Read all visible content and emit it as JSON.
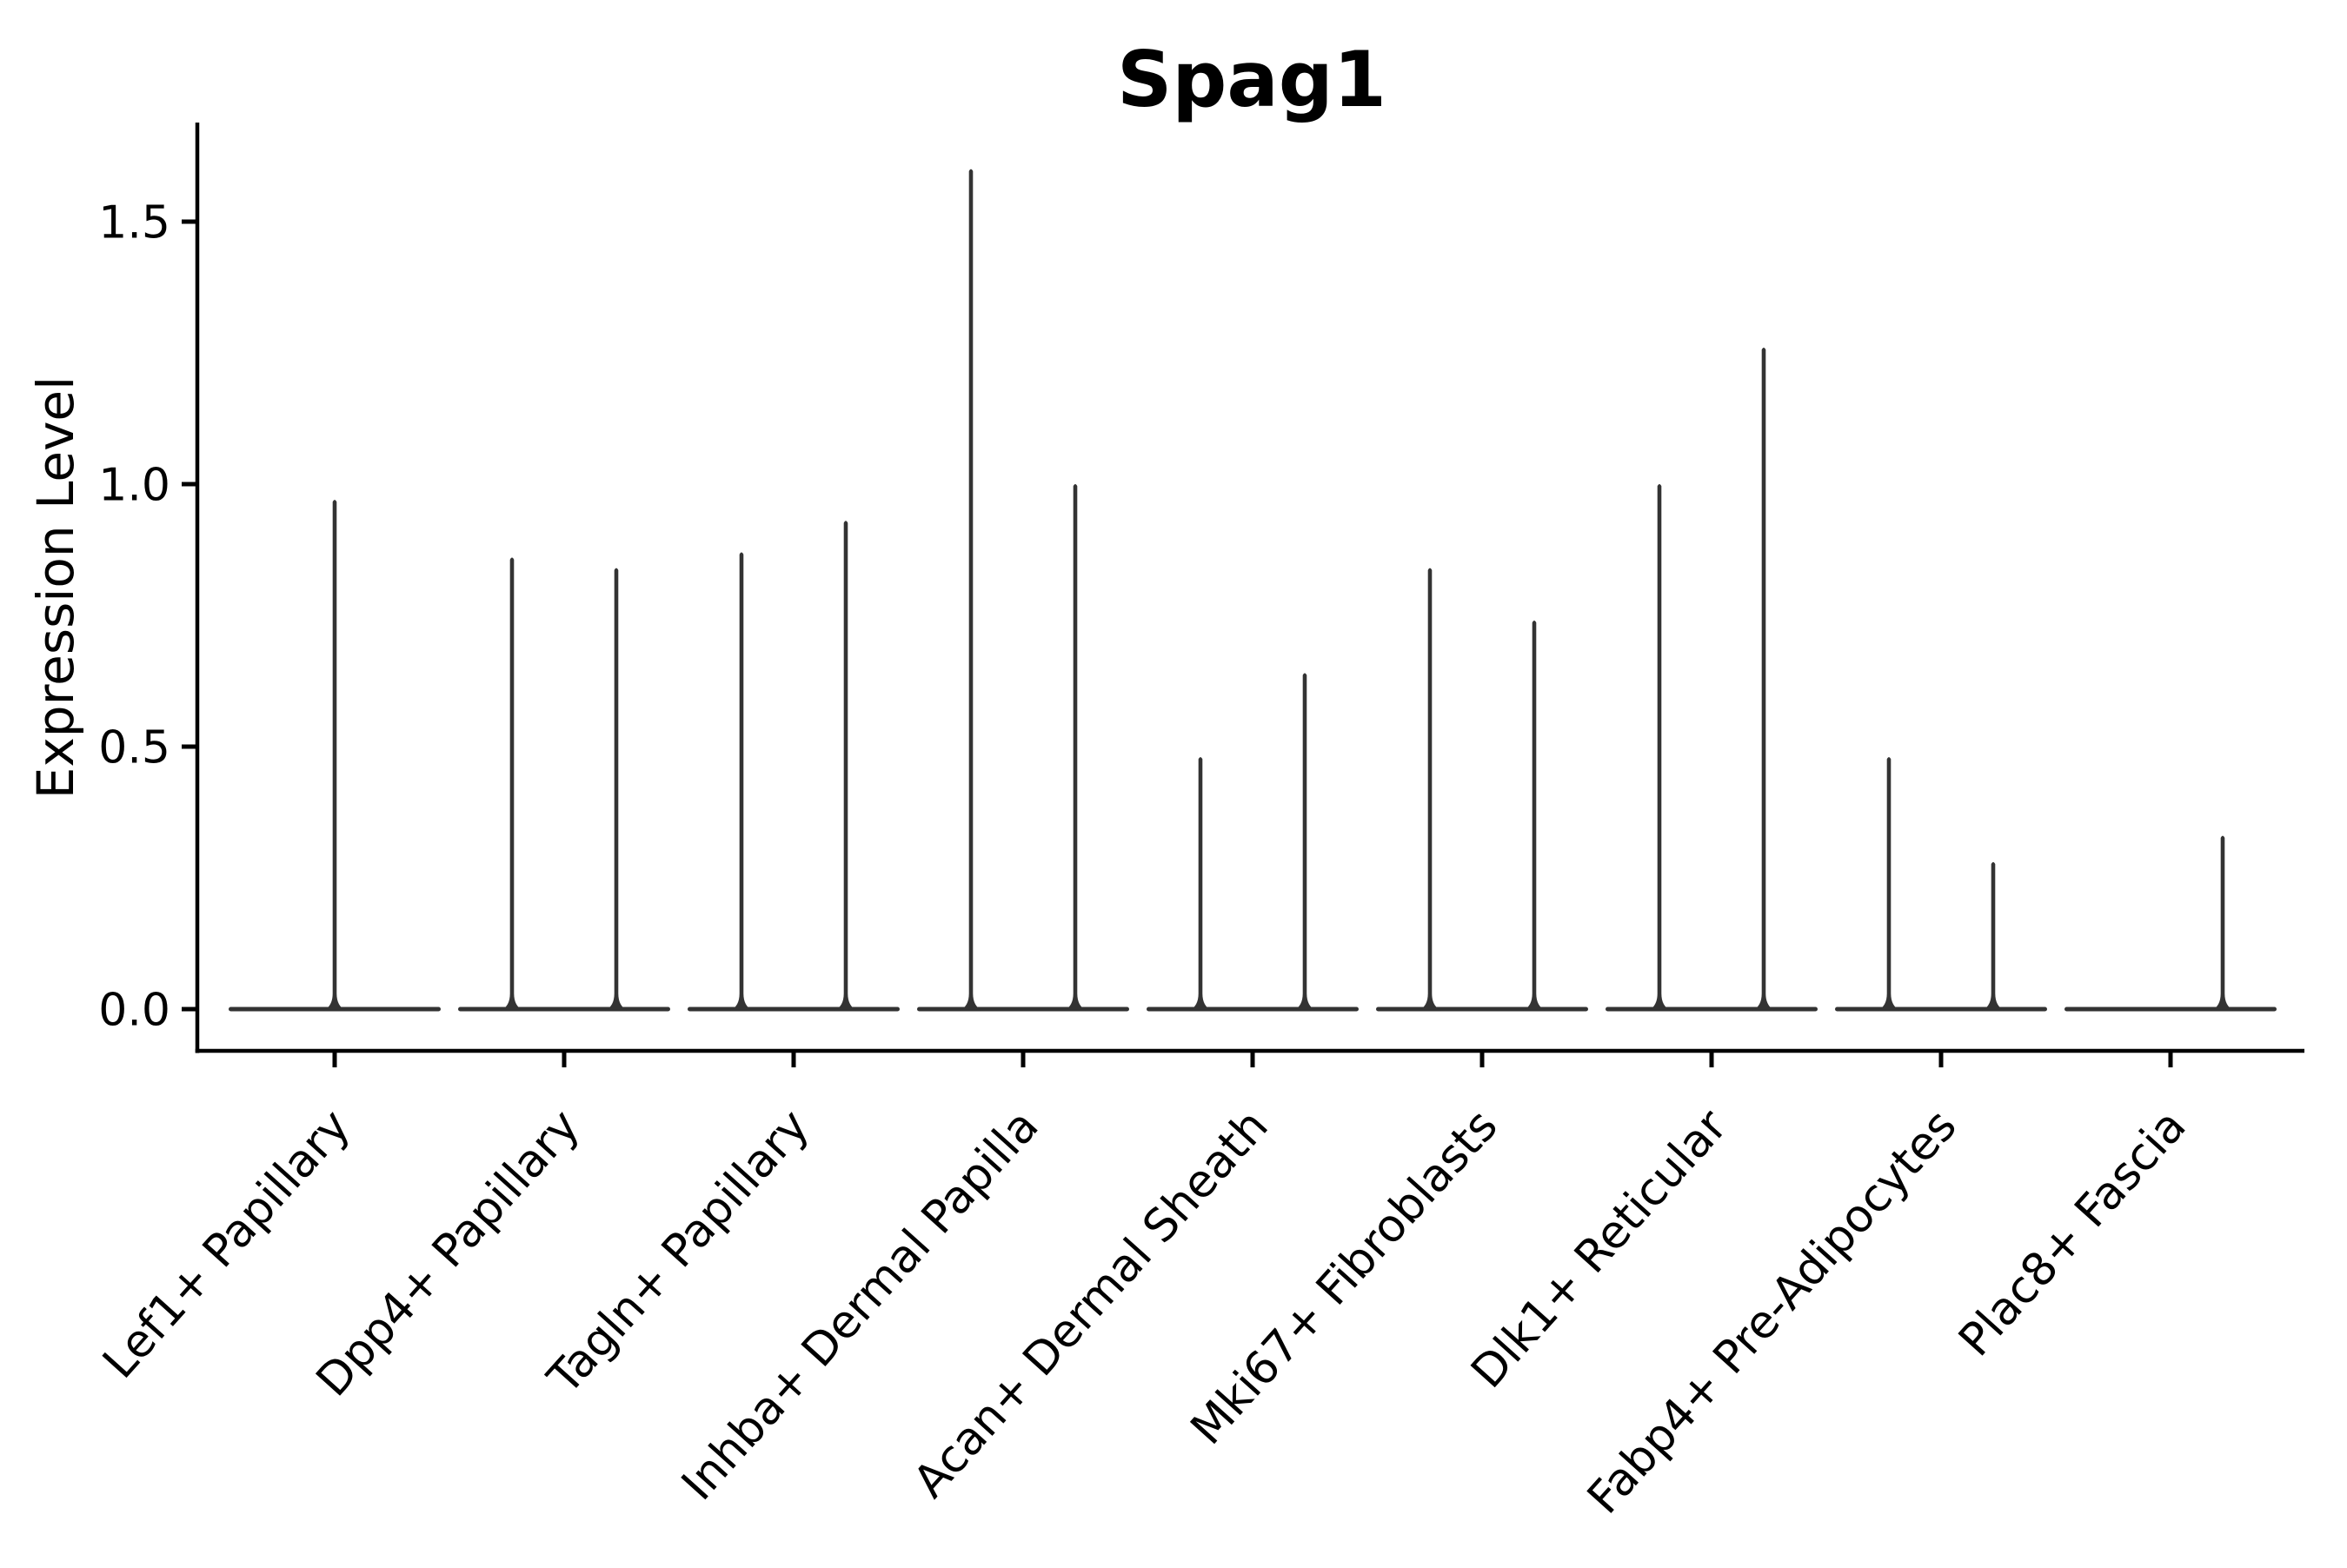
{
  "chart_data": {
    "type": "violin",
    "title": "Spag1",
    "xlabel": "",
    "ylabel": "Expression Level",
    "y_ticks": [
      0.0,
      0.5,
      1.0,
      1.5
    ],
    "ylim": [
      -0.08,
      1.69
    ],
    "grid": false,
    "legend": "none",
    "categories": [
      {
        "label": "Lef1+ Papillary",
        "violins": [
          {
            "position": "center",
            "max": 0.97
          }
        ]
      },
      {
        "label": "Dpp4+ Papillary",
        "violins": [
          {
            "position": "left",
            "max": 0.86
          },
          {
            "position": "right",
            "max": 0.84
          }
        ]
      },
      {
        "label": "Tagln+ Papillary",
        "violins": [
          {
            "position": "left",
            "max": 0.87
          },
          {
            "position": "right",
            "max": 0.93
          }
        ]
      },
      {
        "label": "Inhba+ Dermal Papilla",
        "violins": [
          {
            "position": "left",
            "max": 1.6
          },
          {
            "position": "right",
            "max": 1.0
          }
        ]
      },
      {
        "label": "Acan+ Dermal Sheath",
        "violins": [
          {
            "position": "left",
            "max": 0.48
          },
          {
            "position": "right",
            "max": 0.64
          }
        ]
      },
      {
        "label": "Mki67+ Fibroblasts",
        "violins": [
          {
            "position": "left",
            "max": 0.84
          },
          {
            "position": "right",
            "max": 0.74
          }
        ]
      },
      {
        "label": "Dlk1+ Reticular",
        "violins": [
          {
            "position": "left",
            "max": 1.0
          },
          {
            "position": "right",
            "max": 1.26
          }
        ]
      },
      {
        "label": "Fabp4+ Pre-Adipocytes",
        "violins": [
          {
            "position": "left",
            "max": 0.48
          },
          {
            "position": "right",
            "max": 0.28
          }
        ]
      },
      {
        "label": "Plac8+ Fascia",
        "violins": [
          {
            "position": "right",
            "max": 0.33
          }
        ]
      }
    ],
    "colors": {
      "violin": "#333333",
      "axis": "#000000",
      "text": "#000000",
      "background": "#ffffff"
    }
  }
}
